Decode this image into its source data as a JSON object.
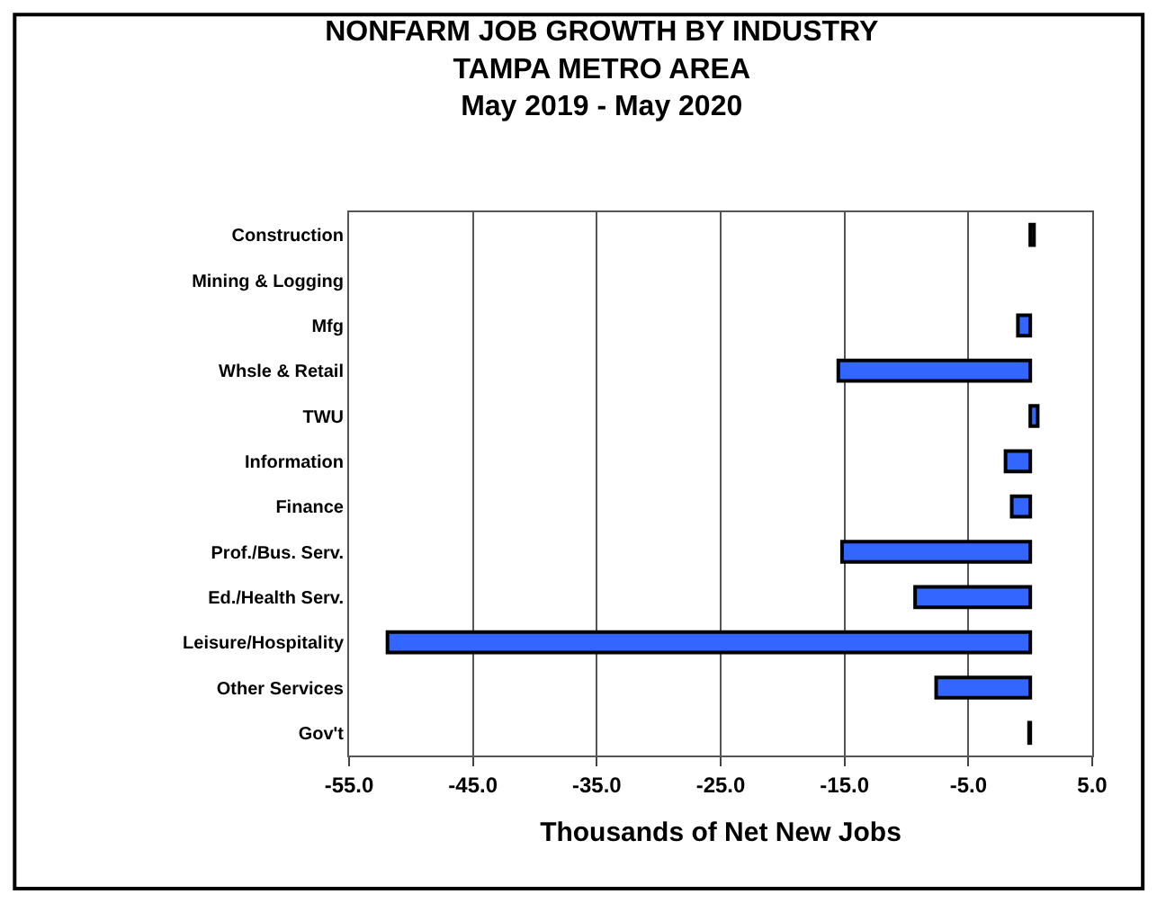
{
  "chart_data": {
    "type": "bar",
    "orientation": "horizontal",
    "title": "NONFARM JOB GROWTH BY INDUSTRY\nTAMPA METRO AREA\nMay 2019 - May 2020",
    "xlabel": "Thousands of Net New Jobs",
    "categories": [
      "Construction",
      "Mining & Logging",
      "Mfg",
      "Whsle & Retail",
      "TWU",
      "Information",
      "Finance",
      "Prof./Bus. Serv.",
      "Ed./Health Serv.",
      "Leisure/Hospitality",
      "Other Services",
      "Gov't"
    ],
    "values": [
      0.3,
      null,
      -1.0,
      -15.5,
      0.6,
      -2.0,
      -1.5,
      -15.2,
      -9.3,
      -51.9,
      -7.6,
      -0.1
    ],
    "color": "#3366ff",
    "xlim": [
      -55,
      5
    ],
    "xticks": [
      {
        "value": -55,
        "label": "-55.0"
      },
      {
        "value": -45,
        "label": "-45.0"
      },
      {
        "value": -35,
        "label": "-35.0"
      },
      {
        "value": -25,
        "label": "-25.0"
      },
      {
        "value": -15,
        "label": "-15.0"
      },
      {
        "value": -5,
        "label": "-5.0"
      },
      {
        "value": 5,
        "label": "5.0"
      }
    ],
    "grid": "x"
  }
}
